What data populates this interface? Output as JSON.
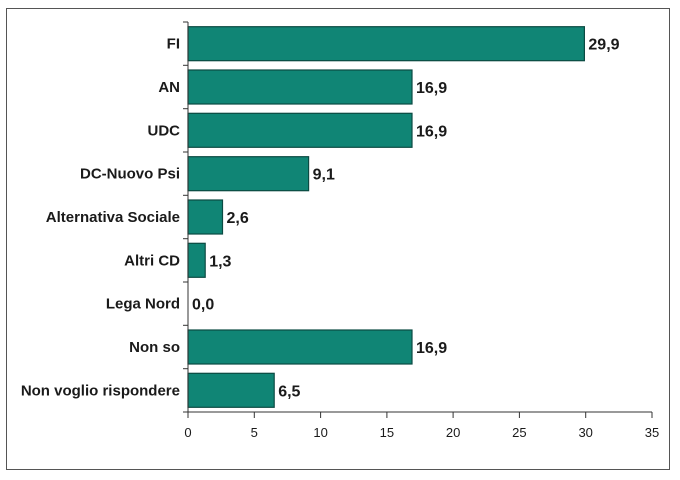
{
  "chart_data": {
    "type": "bar",
    "orientation": "horizontal",
    "categories": [
      "FI",
      "AN",
      "UDC",
      "DC-Nuovo Psi",
      "Alternativa Sociale",
      "Altri CD",
      "Lega Nord",
      "Non so",
      "Non voglio rispondere"
    ],
    "values": [
      29.9,
      16.9,
      16.9,
      9.1,
      2.6,
      1.3,
      0.0,
      16.9,
      6.5
    ],
    "value_labels": [
      "29,9",
      "16,9",
      "16,9",
      "9,1",
      "2,6",
      "1,3",
      "0,0",
      "16,9",
      "6,5"
    ],
    "xlim": [
      0,
      35
    ],
    "xticks": [
      0,
      5,
      10,
      15,
      20,
      25,
      30,
      35
    ],
    "title": "",
    "xlabel": "",
    "ylabel": "",
    "grid": false,
    "legend": "none",
    "bar_color": "#108575",
    "bar_edge_color": "#0b4a42"
  }
}
